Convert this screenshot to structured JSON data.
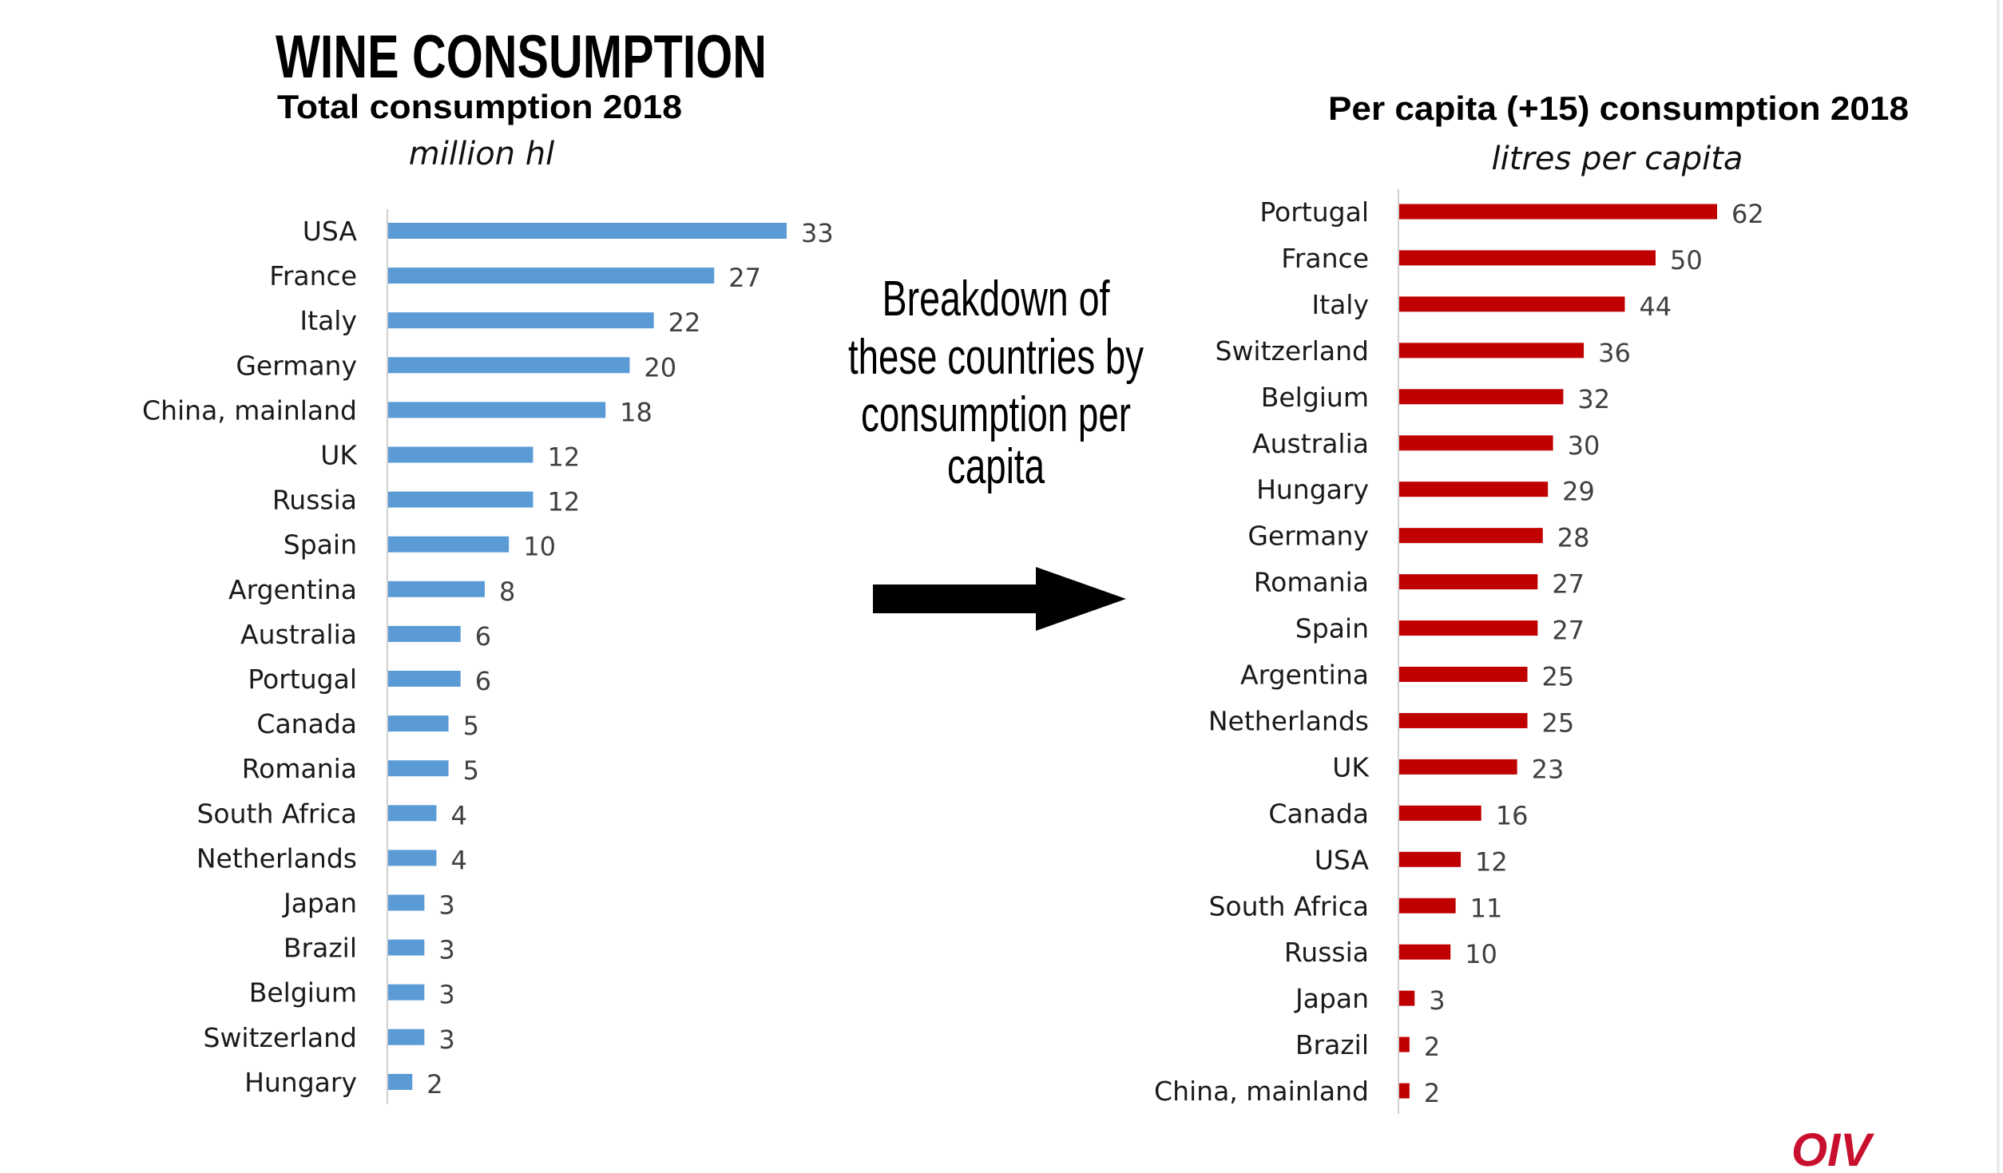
{
  "page": {
    "title": "WINE CONSUMPTION",
    "note_lines": [
      "Breakdown of",
      "these countries by",
      "consumption per",
      "capita"
    ],
    "note_icon": "arrow-right-icon",
    "logo": "OIV",
    "colors": {
      "total_bar": "#5b9bd5",
      "per_capita_bar": "#c00000",
      "logo": "#c8102e"
    }
  },
  "chart_data": [
    {
      "type": "bar",
      "orientation": "horizontal",
      "title": "Total consumption 2018",
      "subtitle": "million hl",
      "xlabel": "",
      "ylabel": "",
      "xlim": [
        0,
        33
      ],
      "grid": false,
      "legend": "none",
      "categories": [
        "USA",
        "France",
        "Italy",
        "Germany",
        "China, mainland",
        "UK",
        "Russia",
        "Spain",
        "Argentina",
        "Australia",
        "Portugal",
        "Canada",
        "Romania",
        "South Africa",
        "Netherlands",
        "Japan",
        "Brazil",
        "Belgium",
        "Switzerland",
        "Hungary"
      ],
      "values": [
        33,
        27,
        22,
        20,
        18,
        12,
        12,
        10,
        8,
        6,
        6,
        5,
        5,
        4,
        4,
        3,
        3,
        3,
        3,
        2
      ],
      "color": "#5b9bd5"
    },
    {
      "type": "bar",
      "orientation": "horizontal",
      "title": "Per capita (+15) consumption 2018",
      "subtitle": "litres per capita",
      "xlabel": "",
      "ylabel": "",
      "xlim": [
        0,
        62
      ],
      "grid": false,
      "legend": "none",
      "categories": [
        "Portugal",
        "France",
        "Italy",
        "Switzerland",
        "Belgium",
        "Australia",
        "Hungary",
        "Germany",
        "Romania",
        "Spain",
        "Argentina",
        "Netherlands",
        "UK",
        "Canada",
        "USA",
        "South Africa",
        "Russia",
        "Japan",
        "Brazil",
        "China, mainland"
      ],
      "values": [
        62,
        50,
        44,
        36,
        32,
        30,
        29,
        28,
        27,
        27,
        25,
        25,
        23,
        16,
        12,
        11,
        10,
        3,
        2,
        2
      ],
      "color": "#c00000"
    }
  ]
}
